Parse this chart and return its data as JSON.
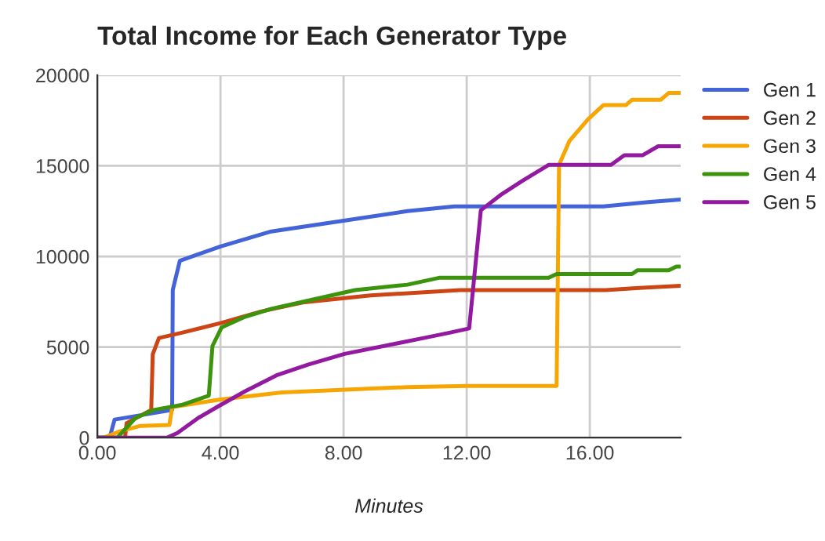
{
  "chart_data": {
    "type": "line",
    "title": "Total Income for Each Generator Type",
    "xlabel": "Minutes",
    "xlim": [
      0,
      18.95
    ],
    "xticks": [
      {
        "value": 0,
        "label": "0.00"
      },
      {
        "value": 4,
        "label": "4.00"
      },
      {
        "value": 8,
        "label": "8.00"
      },
      {
        "value": 12,
        "label": "12.00"
      },
      {
        "value": 16,
        "label": "16.00"
      }
    ],
    "ylim": [
      0,
      20000
    ],
    "yticks": [
      0,
      5000,
      10000,
      15000,
      20000
    ],
    "grid": true,
    "legend": "right",
    "marker": "none",
    "line_style": "solid",
    "series": [
      {
        "name": "Gen 1",
        "color": "#4363d8",
        "x": [
          0,
          0.4,
          0.56,
          2.43,
          2.45,
          2.68,
          4.0,
          5.65,
          8.0,
          10.07,
          11.6,
          16.44,
          17.9,
          18.95
        ],
        "values": [
          0,
          0,
          1000,
          1530,
          8150,
          9760,
          10550,
          11380,
          11970,
          12500,
          12760,
          12760,
          13000,
          13140
        ]
      },
      {
        "name": "Gen 2",
        "color": "#cc4514",
        "x": [
          0,
          0.9,
          0.95,
          1.75,
          1.8,
          2.0,
          2.77,
          4.0,
          5.31,
          6.67,
          8.88,
          11.78,
          16.52,
          17.6,
          18.95
        ],
        "values": [
          0,
          0,
          800,
          1530,
          4600,
          5500,
          5800,
          6320,
          6960,
          7460,
          7850,
          8140,
          8140,
          8260,
          8380
        ]
      },
      {
        "name": "Gen 3",
        "color": "#f7a500",
        "x": [
          0,
          0.2,
          0.73,
          1.4,
          2.34,
          2.43,
          3.96,
          6.0,
          10.07,
          12.0,
          14.92,
          15.0,
          15.34,
          15.93,
          16.44,
          17.17,
          17.37,
          18.3,
          18.56,
          18.95
        ],
        "values": [
          0,
          0,
          350,
          650,
          700,
          1680,
          2100,
          2500,
          2790,
          2850,
          2850,
          15050,
          16380,
          17550,
          18350,
          18350,
          18640,
          18640,
          19020,
          19020
        ]
      },
      {
        "name": "Gen 4",
        "color": "#3c940c",
        "x": [
          0,
          0.65,
          1.24,
          1.83,
          2.77,
          3.62,
          3.74,
          4.04,
          4.8,
          5.65,
          6.84,
          8.37,
          10.07,
          11.1,
          14.66,
          14.92,
          17.37,
          17.54,
          18.56,
          18.81,
          18.95
        ],
        "values": [
          0,
          0,
          1090,
          1530,
          1820,
          2320,
          5060,
          6090,
          6670,
          7110,
          7560,
          8140,
          8440,
          8820,
          8820,
          9030,
          9030,
          9230,
          9230,
          9440,
          9440
        ]
      },
      {
        "name": "Gen 5",
        "color": "#931aa0",
        "x": [
          0,
          2.26,
          2.6,
          3.28,
          3.96,
          4.8,
          5.82,
          6.84,
          8.03,
          9.73,
          10.6,
          11.44,
          12.08,
          12.46,
          13.14,
          13.81,
          14.66,
          16.69,
          17.12,
          17.71,
          18.22,
          18.95
        ],
        "values": [
          0,
          0,
          260,
          1090,
          1760,
          2560,
          3440,
          4030,
          4620,
          5200,
          5500,
          5790,
          6030,
          12550,
          13440,
          14170,
          15050,
          15050,
          15580,
          15580,
          16080,
          16080
        ]
      }
    ]
  }
}
